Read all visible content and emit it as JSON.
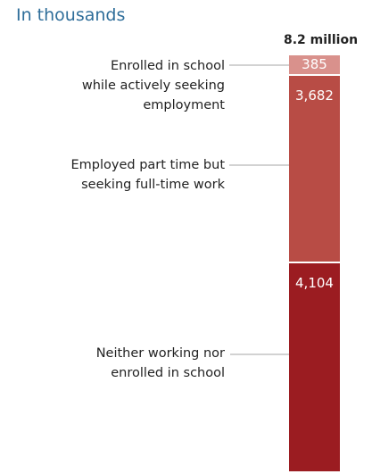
{
  "chart_data": {
    "type": "bar",
    "subtitle": "In thousands",
    "total_label": "8.2 million",
    "categories": [
      "Enrolled in school while actively seeking employment",
      "Employed part time but seeking full-time work",
      "Neither working nor enrolled in school"
    ],
    "category_lines": [
      [
        "Enrolled in school",
        "while actively seeking",
        "employment"
      ],
      [
        "Employed part time but",
        "seeking full-time work"
      ],
      [
        "Neither working nor",
        "enrolled in school"
      ]
    ],
    "values": [
      385,
      3682,
      4104
    ],
    "value_labels": [
      "385",
      "3,682",
      "4,104"
    ],
    "stacked": true,
    "colors": [
      "#d9918c",
      "#b84c45",
      "#9b1c21"
    ],
    "grid": false,
    "legend": "none"
  }
}
